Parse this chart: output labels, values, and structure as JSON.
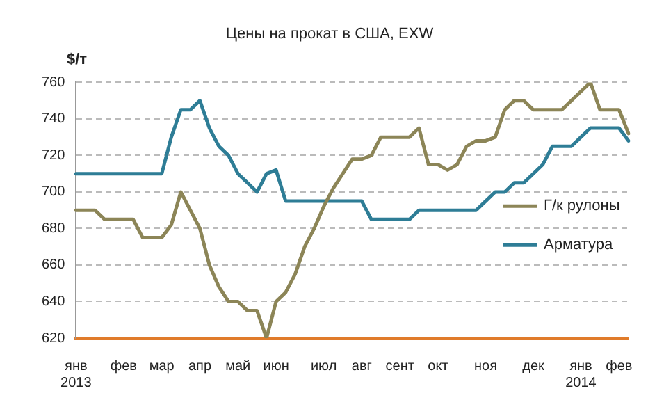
{
  "chart_data": {
    "type": "line",
    "title": "Цены на прокат в США, EXW",
    "ylabel": "$/т",
    "categories": [
      "янв\n2013",
      null,
      null,
      null,
      null,
      "фев",
      null,
      null,
      null,
      "мар",
      null,
      null,
      null,
      "апр",
      null,
      null,
      null,
      "май",
      null,
      null,
      null,
      "июн",
      null,
      null,
      null,
      null,
      "июл",
      null,
      null,
      null,
      "авг",
      null,
      null,
      null,
      "сент",
      null,
      null,
      null,
      "окт",
      null,
      null,
      null,
      null,
      "ноя",
      null,
      null,
      null,
      null,
      "дек",
      null,
      null,
      null,
      null,
      "янв\n2014",
      null,
      null,
      null,
      "фев",
      null
    ],
    "ylim": [
      620,
      760
    ],
    "yticks": [
      620,
      640,
      660,
      680,
      700,
      720,
      740,
      760
    ],
    "grid": "y",
    "legend": "right",
    "marker": "none",
    "line_style": "solid",
    "series": [
      {
        "name": "Г/к рулоны",
        "color": "#8c8557",
        "values": [
          690,
          690,
          690,
          685,
          685,
          685,
          685,
          675,
          675,
          675,
          682,
          700,
          690,
          680,
          660,
          648,
          640,
          640,
          635,
          635,
          620,
          640,
          645,
          655,
          670,
          680,
          692,
          702,
          710,
          718,
          718,
          720,
          730,
          730,
          730,
          730,
          735,
          715,
          715,
          712,
          715,
          725,
          728,
          728,
          730,
          745,
          750,
          750,
          745,
          745,
          745,
          745,
          750,
          755,
          760,
          745,
          745,
          745,
          732
        ]
      },
      {
        "name": "Арматура",
        "color": "#2e7d96",
        "values": [
          710,
          710,
          710,
          710,
          710,
          710,
          710,
          710,
          710,
          710,
          730,
          745,
          745,
          750,
          735,
          725,
          720,
          710,
          705,
          700,
          710,
          712,
          695,
          695,
          695,
          695,
          695,
          695,
          695,
          695,
          695,
          685,
          685,
          685,
          685,
          685,
          690,
          690,
          690,
          690,
          690,
          690,
          690,
          695,
          700,
          700,
          705,
          705,
          710,
          715,
          725,
          725,
          725,
          730,
          735,
          735,
          735,
          735,
          728
        ]
      }
    ]
  }
}
